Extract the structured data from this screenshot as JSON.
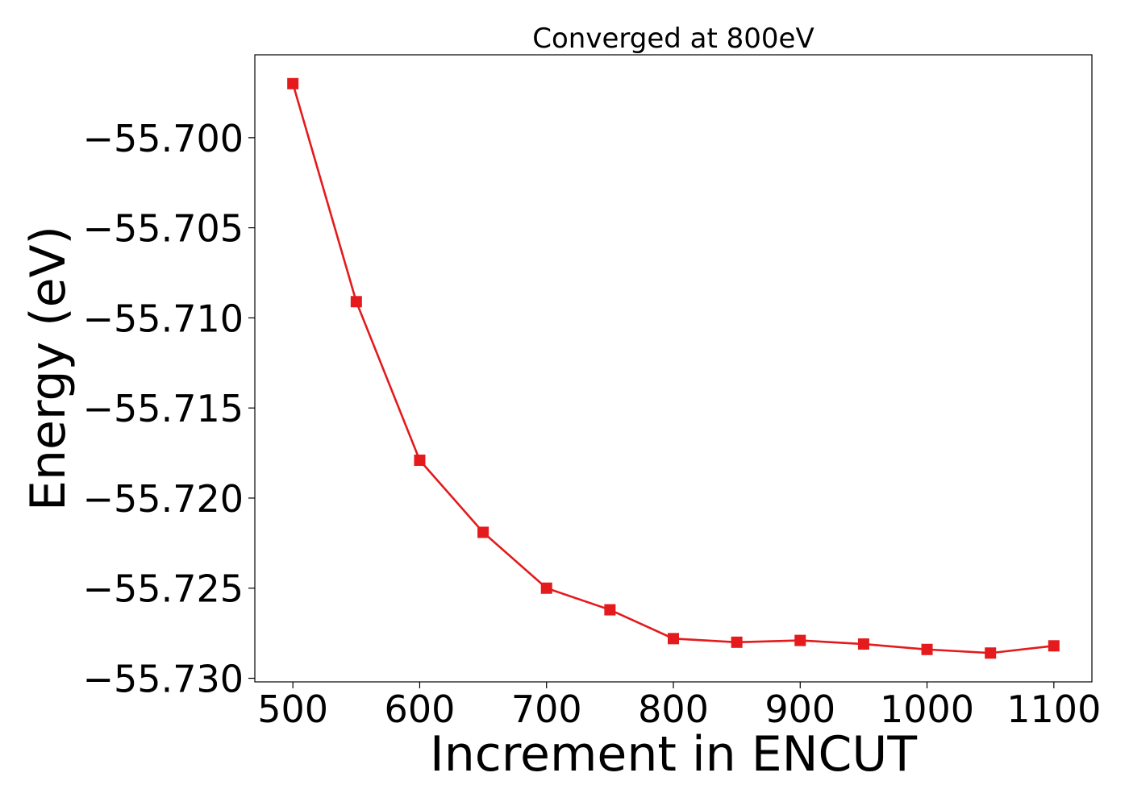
{
  "chart_data": {
    "type": "line",
    "title": "Converged at 800eV",
    "xlabel": "Increment in ENCUT",
    "ylabel": "Energy (eV)",
    "xlim": [
      470,
      1130
    ],
    "ylim": [
      -55.7302,
      -55.6954
    ],
    "x_ticks": [
      500,
      600,
      700,
      800,
      900,
      1000,
      1100
    ],
    "y_ticks": [
      -55.7,
      -55.705,
      -55.71,
      -55.715,
      -55.72,
      -55.725,
      -55.73
    ],
    "y_tick_labels": [
      "−55.700",
      "−55.705",
      "−55.710",
      "−55.715",
      "−55.720",
      "−55.725",
      "−55.730"
    ],
    "grid": false,
    "series": [
      {
        "color": "#e41a1c",
        "marker": "square",
        "x": [
          500,
          550,
          600,
          650,
          700,
          750,
          800,
          850,
          900,
          950,
          1000,
          1050,
          1100
        ],
        "y": [
          -55.697,
          -55.7091,
          -55.7179,
          -55.7219,
          -55.725,
          -55.7262,
          -55.7278,
          -55.728,
          -55.7279,
          -55.7281,
          -55.7284,
          -55.7286,
          -55.7282
        ]
      }
    ]
  }
}
